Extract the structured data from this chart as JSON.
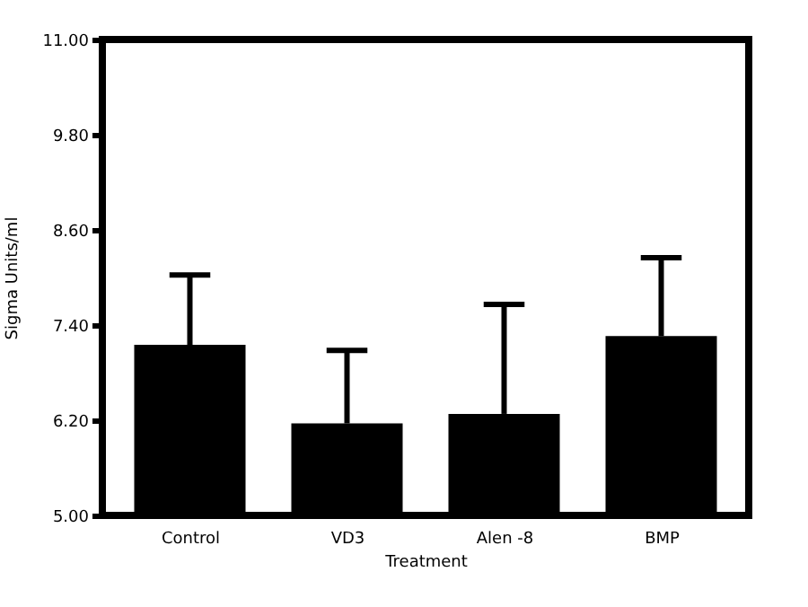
{
  "chart_data": {
    "type": "bar",
    "xlabel": "Treatment",
    "ylabel": "Sigma Units/ml",
    "categories": [
      "Control",
      "VD3",
      "Alen -8",
      "BMP"
    ],
    "values": [
      7.15,
      6.16,
      6.28,
      7.26
    ],
    "errors": [
      [
        7.15,
        8.03
      ],
      [
        6.16,
        7.08
      ],
      [
        6.28,
        7.66
      ],
      [
        7.26,
        8.25
      ]
    ],
    "color": "#000000",
    "ylim": [
      5.0,
      11.0
    ],
    "yticks": [
      {
        "value": 5,
        "label": "5.00"
      },
      {
        "value": 6.2,
        "label": "6.20"
      },
      {
        "value": 7.4,
        "label": "7.40"
      },
      {
        "value": 8.6,
        "label": "8.60"
      },
      {
        "value": 9.8,
        "label": "9.80"
      },
      {
        "value": 11,
        "label": "11.00"
      }
    ],
    "grid": false
  }
}
